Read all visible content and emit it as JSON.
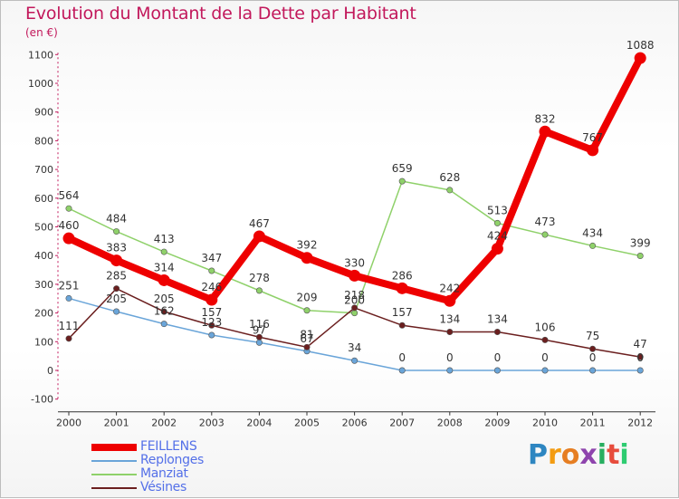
{
  "title": "Evolution du Montant de la Dette par Habitant",
  "unit": "(en €)",
  "brand": {
    "letters": [
      "P",
      "r",
      "o",
      "x",
      "i",
      "t",
      "i"
    ],
    "colors": [
      "#2e86c1",
      "#f39c12",
      "#e67e22",
      "#8e44ad",
      "#27ae60",
      "#e74c3c",
      "#2ecc71"
    ]
  },
  "chart_data": {
    "type": "line",
    "x": [
      "2000",
      "2001",
      "2002",
      "2003",
      "2004",
      "2005",
      "2006",
      "2007",
      "2008",
      "2009",
      "2010",
      "2011",
      "2012"
    ],
    "yticks": [
      "1100",
      "1000",
      "900",
      "800",
      "700",
      "600",
      "500",
      "400",
      "300",
      "200",
      "100",
      "0",
      "-100"
    ],
    "ylim": [
      -100,
      1100
    ],
    "grid": false,
    "legend_position": "bottom-left",
    "series": [
      {
        "name": "FEILLENS",
        "color": "#ee0000",
        "values": [
          460,
          383,
          314,
          246,
          467,
          392,
          330,
          286,
          242,
          424,
          832,
          767,
          1088
        ],
        "labels": [
          "460",
          "383",
          "314",
          "246",
          "467",
          "392",
          "330",
          "286",
          "242",
          "424",
          "832",
          "767",
          "1088"
        ]
      },
      {
        "name": "Replonges",
        "color": "#6aa5d9",
        "values": [
          251,
          205,
          162,
          123,
          97,
          67,
          34,
          0,
          0,
          0,
          0,
          0,
          0
        ],
        "labels": [
          "251",
          "205",
          "162",
          "123",
          "97",
          "67",
          "34",
          "0",
          "0",
          "0",
          "0",
          "0",
          "0"
        ]
      },
      {
        "name": "Manziat",
        "color": "#8fd16a",
        "values": [
          564,
          484,
          413,
          347,
          278,
          209,
          200,
          659,
          628,
          513,
          473,
          434,
          399
        ],
        "labels": [
          "564",
          "484",
          "413",
          "347",
          "278",
          "209",
          "200",
          "659",
          "628",
          "513",
          "473",
          "434",
          "399"
        ]
      },
      {
        "name": "Vésines",
        "color": "#6b1f1f",
        "values": [
          111,
          285,
          205,
          157,
          116,
          81,
          218,
          157,
          134,
          134,
          106,
          75,
          47
        ],
        "labels": [
          "111",
          "285",
          "205",
          "157",
          "116",
          "81",
          "218",
          "157",
          "134",
          "134",
          "106",
          "75",
          "47"
        ]
      }
    ]
  }
}
